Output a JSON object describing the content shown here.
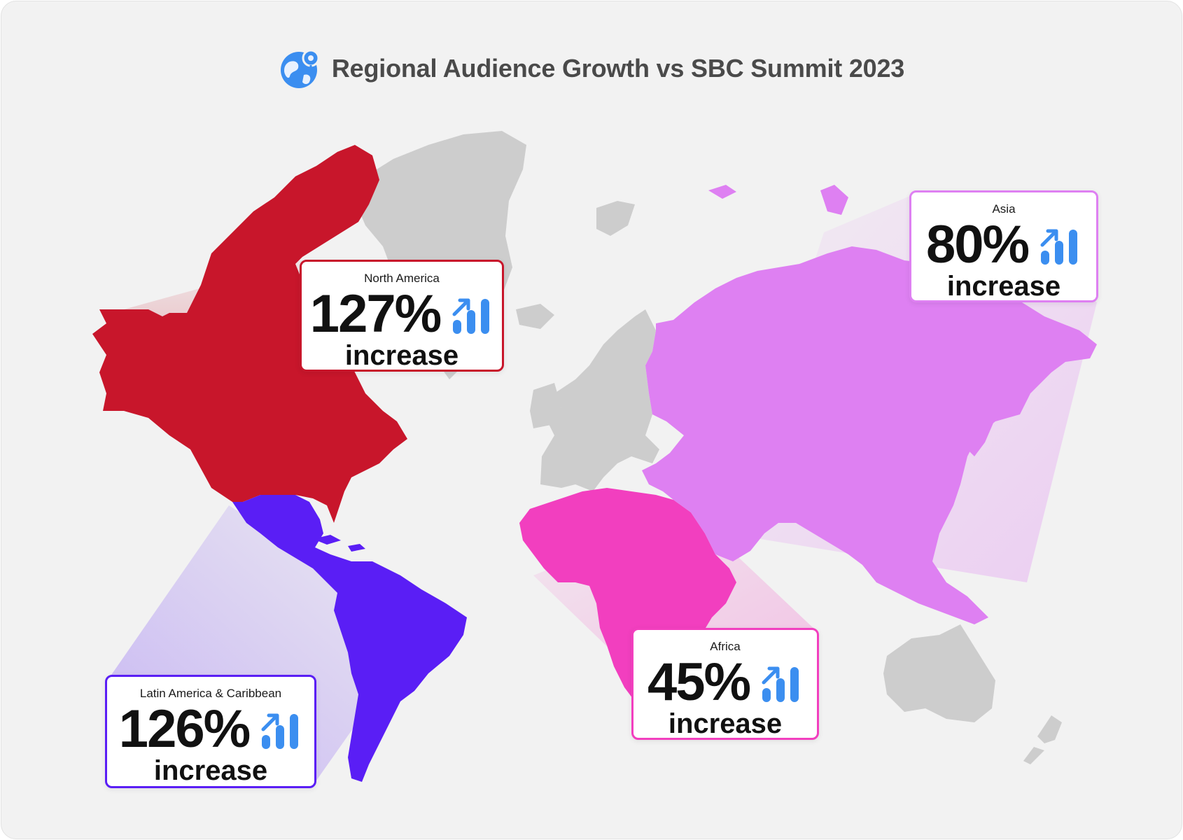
{
  "header": {
    "title": "Regional Audience Growth vs SBC Summit 2023",
    "icon": "globe-pin-icon"
  },
  "colors": {
    "background": "#f2f2f2",
    "neutral_land": "#cdcdcd",
    "north_america": "#c8162b",
    "latin_america": "#5a1ef5",
    "africa": "#f23fbf",
    "asia": "#de80f2",
    "trend_icon": "#3b8ef0"
  },
  "regions": {
    "north_america": {
      "name": "North America",
      "value": "127%",
      "label": "increase",
      "growth_percent": 127,
      "icon": "trend-up-bars-icon"
    },
    "latin_america": {
      "name": "Latin America & Caribbean",
      "value": "126%",
      "label": "increase",
      "growth_percent": 126,
      "icon": "trend-up-bars-icon"
    },
    "africa": {
      "name": "Africa",
      "value": "45%",
      "label": "increase",
      "growth_percent": 45,
      "icon": "trend-up-bars-icon"
    },
    "asia": {
      "name": "Asia",
      "value": "80%",
      "label": "increase",
      "growth_percent": 80,
      "icon": "trend-up-bars-icon"
    }
  }
}
